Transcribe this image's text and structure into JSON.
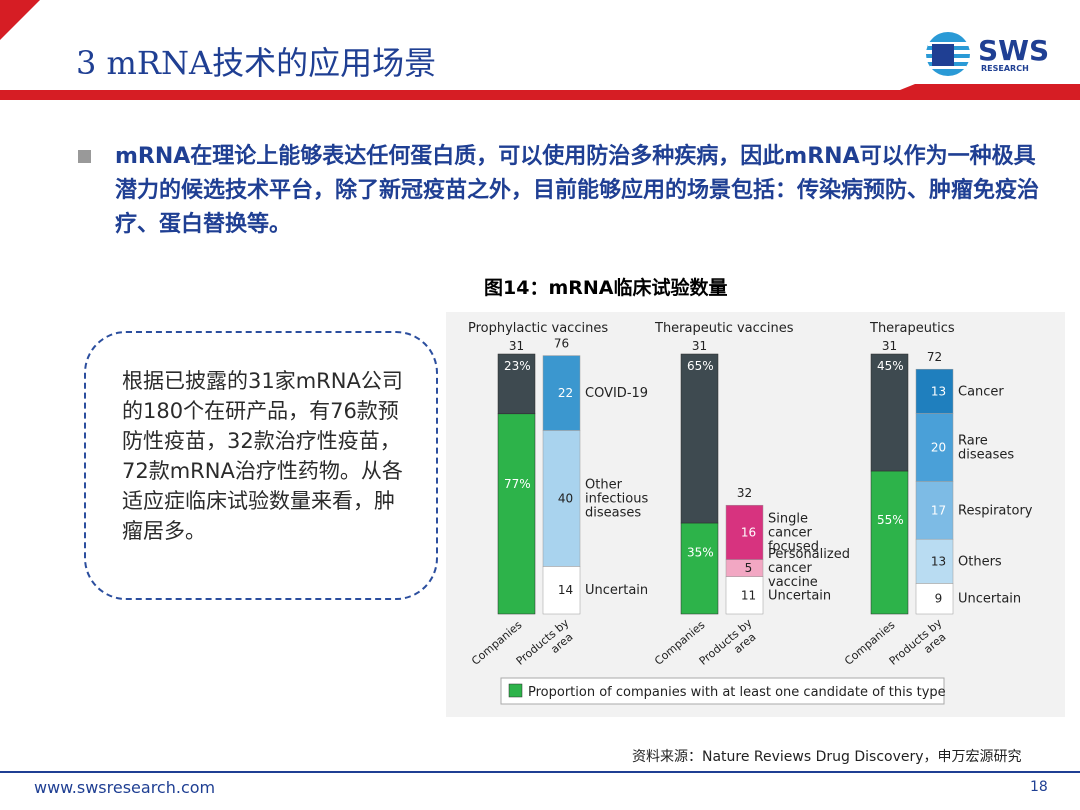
{
  "header": {
    "title": "3 mRNA技术的应用场景",
    "logo_text": "SWS",
    "logo_subtext": "RESEARCH",
    "accent_color": "#d61d24",
    "brand_color": "#1f3f93"
  },
  "bullet": {
    "text": "mRNA在理论上能够表达任何蛋白质，可以使用防治多种疾病，因此mRNA可以作为一种极具潜力的候选技术平台，除了新冠疫苗之外，目前能够应用的场景包括：传染病预防、肿瘤免疫治疗、蛋白替换等。"
  },
  "figure": {
    "caption": "图14：mRNA临床试验数量"
  },
  "callout": {
    "text": "根据已披露的31家mRNA公司的180个在研产品，有76款预防性疫苗，32款治疗性疫苗，72款mRNA治疗性药物。从各适应症临床试验数量来看，肿瘤居多。"
  },
  "chart_data": {
    "type": "bar",
    "layout": "grouped stacked bars",
    "legend": {
      "label": "Proportion of companies with at least one candidate of this type",
      "color": "#2db34a",
      "placement": "bottom"
    },
    "x_tick_labels": [
      "Companies",
      "Products by area"
    ],
    "groups": [
      {
        "name": "Prophylactic vaccines",
        "companies": {
          "total": 31,
          "segments": [
            {
              "label": "23%",
              "value": 23,
              "color": "#3e4a50"
            },
            {
              "label": "77%",
              "value": 77,
              "color": "#2db34a"
            }
          ]
        },
        "products": {
          "total": 76,
          "segments": [
            {
              "label": "COVID-19",
              "value": 22,
              "color": "#3b97cf"
            },
            {
              "label": "Other infectious diseases",
              "value": 40,
              "color": "#a9d3ee"
            },
            {
              "label": "Uncertain",
              "value": 14,
              "color": "#ffffff"
            }
          ]
        }
      },
      {
        "name": "Therapeutic vaccines",
        "companies": {
          "total": 31,
          "segments": [
            {
              "label": "65%",
              "value": 65,
              "color": "#3e4a50"
            },
            {
              "label": "35%",
              "value": 35,
              "color": "#2db34a"
            }
          ]
        },
        "products": {
          "total": 32,
          "segments": [
            {
              "label": "Single cancer focused",
              "value": 16,
              "color": "#d7337f"
            },
            {
              "label": "Personalized cancer vaccine",
              "value": 5,
              "color": "#f2a7c3"
            },
            {
              "label": "Uncertain",
              "value": 11,
              "color": "#ffffff"
            }
          ]
        }
      },
      {
        "name": "Therapeutics",
        "companies": {
          "total": 31,
          "segments": [
            {
              "label": "45%",
              "value": 45,
              "color": "#3e4a50"
            },
            {
              "label": "55%",
              "value": 55,
              "color": "#2db34a"
            }
          ]
        },
        "products": {
          "total": 72,
          "segments": [
            {
              "label": "Cancer",
              "value": 13,
              "color": "#1f7fbe"
            },
            {
              "label": "Rare diseases",
              "value": 20,
              "color": "#4aa0d8"
            },
            {
              "label": "Respiratory",
              "value": 17,
              "color": "#7dbbe5"
            },
            {
              "label": "Others",
              "value": 13,
              "color": "#b9dcf2"
            },
            {
              "label": "Uncertain",
              "value": 9,
              "color": "#ffffff"
            }
          ]
        }
      }
    ]
  },
  "source": {
    "text": "资料来源：Nature Reviews Drug Discovery，申万宏源研究"
  },
  "footer": {
    "url": "www.swsresearch.com",
    "page_number": "18"
  }
}
